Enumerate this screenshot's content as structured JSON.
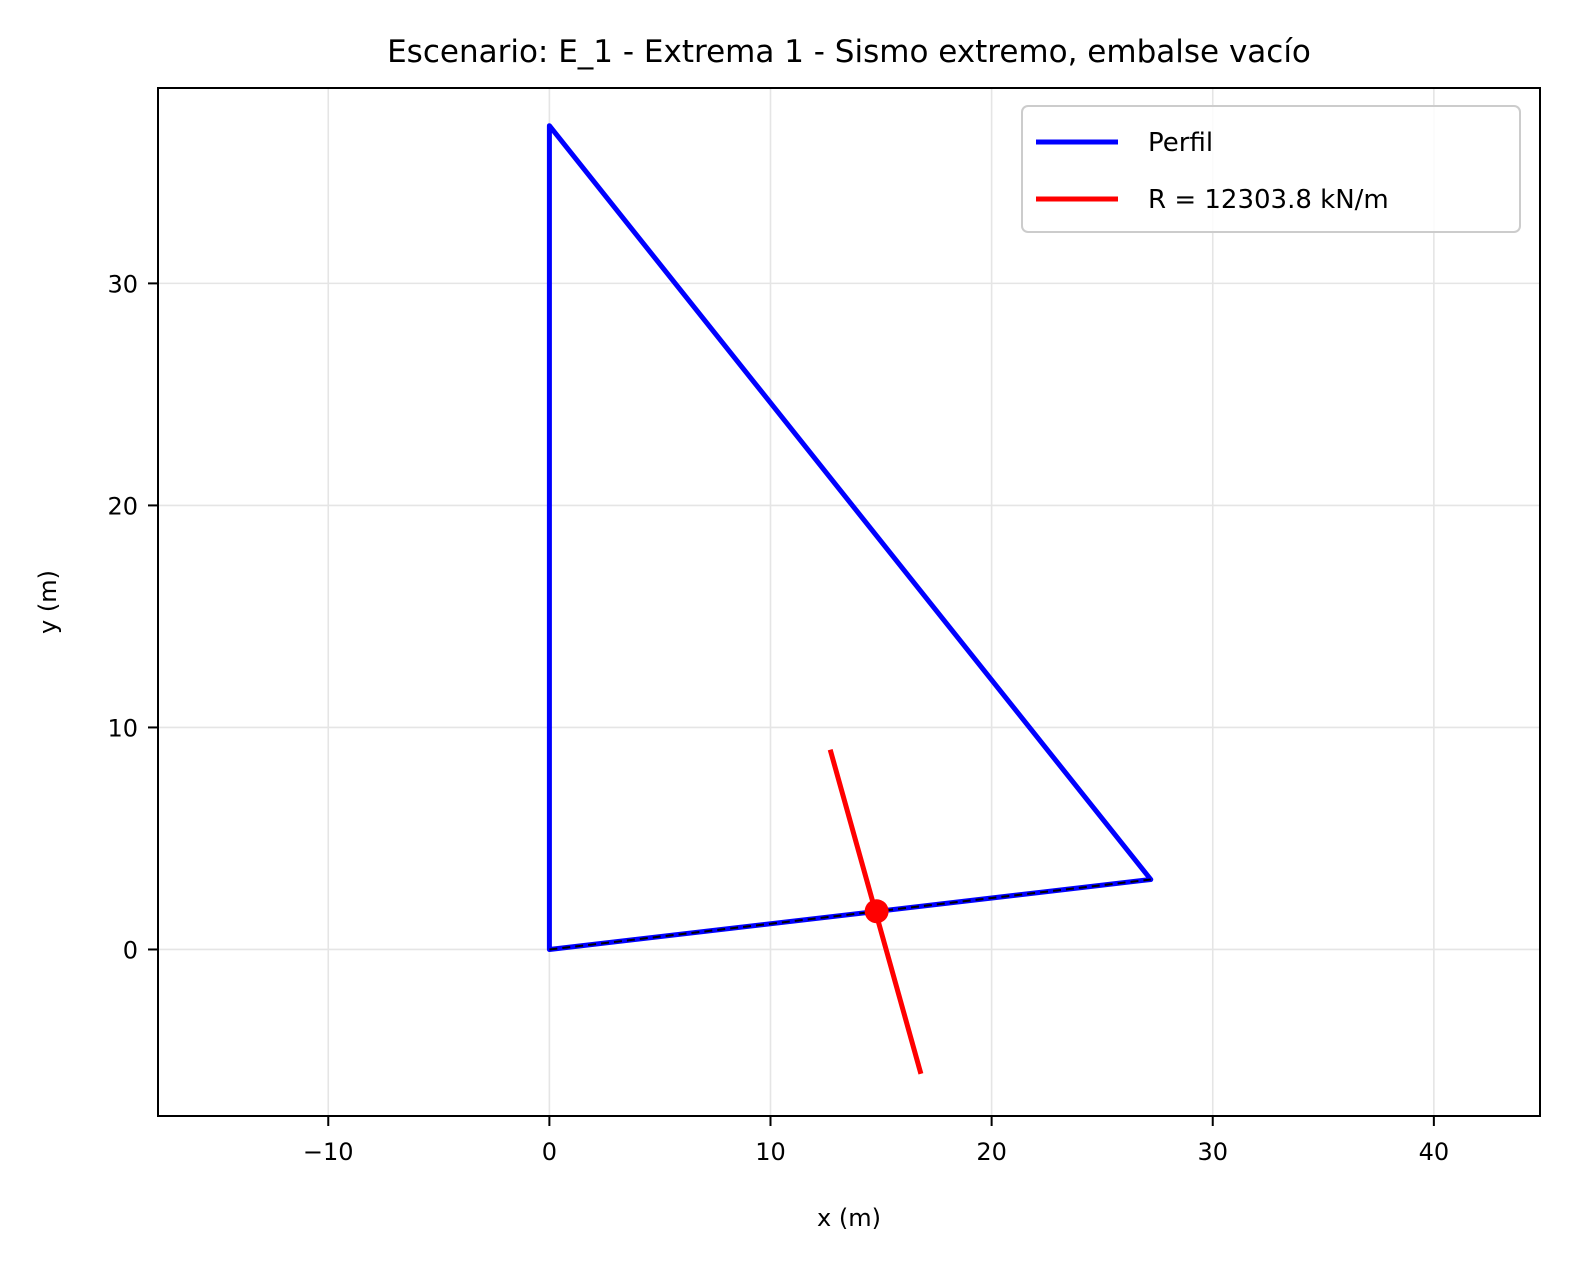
{
  "chart_data": {
    "type": "line",
    "title": "Escenario: E_1 - Extrema 1 - Sismo extremo, embalse vacío",
    "xlabel": "x (m)",
    "ylabel": "y (m)",
    "xlim": [
      -17.7,
      44.8
    ],
    "ylim": [
      -7.5,
      38.8
    ],
    "xticks": [
      {
        "value": -10,
        "label": "−10"
      },
      {
        "value": 0,
        "label": "0"
      },
      {
        "value": 10,
        "label": "10"
      },
      {
        "value": 20,
        "label": "20"
      },
      {
        "value": 30,
        "label": "30"
      },
      {
        "value": 40,
        "label": "40"
      }
    ],
    "yticks": [
      {
        "value": 0,
        "label": "0"
      },
      {
        "value": 10,
        "label": "10"
      },
      {
        "value": 20,
        "label": "20"
      },
      {
        "value": 30,
        "label": "30"
      }
    ],
    "grid": true,
    "legend_position": "top-right",
    "series": [
      {
        "name": "Perfil",
        "color": "#0000ff",
        "x": [
          0,
          0,
          27.2,
          0
        ],
        "y": [
          0,
          37.1,
          3.15,
          0
        ]
      },
      {
        "name": "R = 12303.8 kN/m",
        "color": "#ff0000",
        "x": [
          12.7,
          16.8
        ],
        "y": [
          9.0,
          -5.6
        ]
      }
    ],
    "base_line": {
      "color": "#000000",
      "style": "dashed",
      "x": [
        0,
        27.2
      ],
      "y": [
        0,
        3.15
      ]
    },
    "resultant_point": {
      "color": "#ff0000",
      "x": 14.8,
      "y": 1.72
    }
  }
}
